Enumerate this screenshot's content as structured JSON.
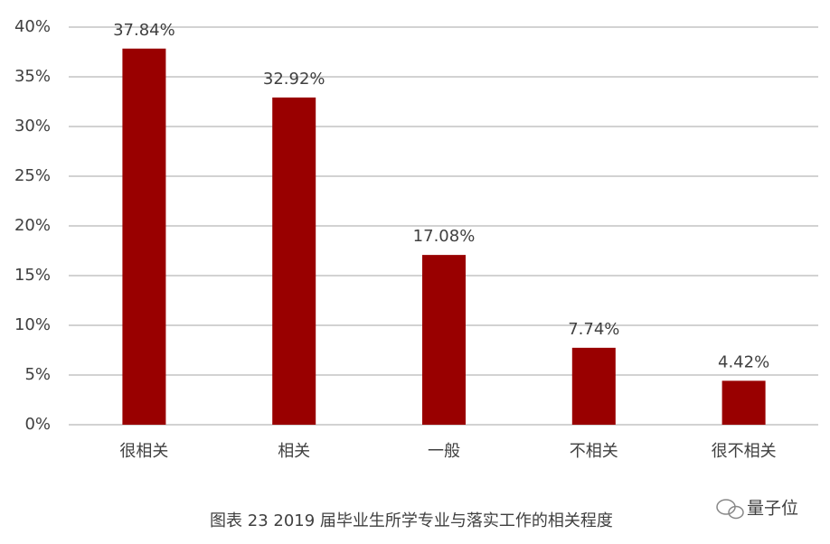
{
  "chart_data": {
    "type": "bar",
    "title": "图表 23  2019 届毕业生所学专业与落实工作的相关程度",
    "categories": [
      "很相关",
      "相关",
      "一般",
      "不相关",
      "很不相关"
    ],
    "values": [
      37.84,
      32.92,
      17.08,
      7.74,
      4.42
    ],
    "value_labels": [
      "37.84%",
      "32.92%",
      "17.08%",
      "7.74%",
      "4.42%"
    ],
    "color": "#990000",
    "ylim": [
      0,
      40
    ],
    "yticks": [
      {
        "value": 0,
        "label": "0%"
      },
      {
        "value": 5,
        "label": "5%"
      },
      {
        "value": 10,
        "label": "10%"
      },
      {
        "value": 15,
        "label": "15%"
      },
      {
        "value": 20,
        "label": "20%"
      },
      {
        "value": 25,
        "label": "25%"
      },
      {
        "value": 30,
        "label": "30%"
      },
      {
        "value": 35,
        "label": "35%"
      },
      {
        "value": 40,
        "label": "40%"
      }
    ],
    "grid": true
  },
  "watermark": "量子位"
}
